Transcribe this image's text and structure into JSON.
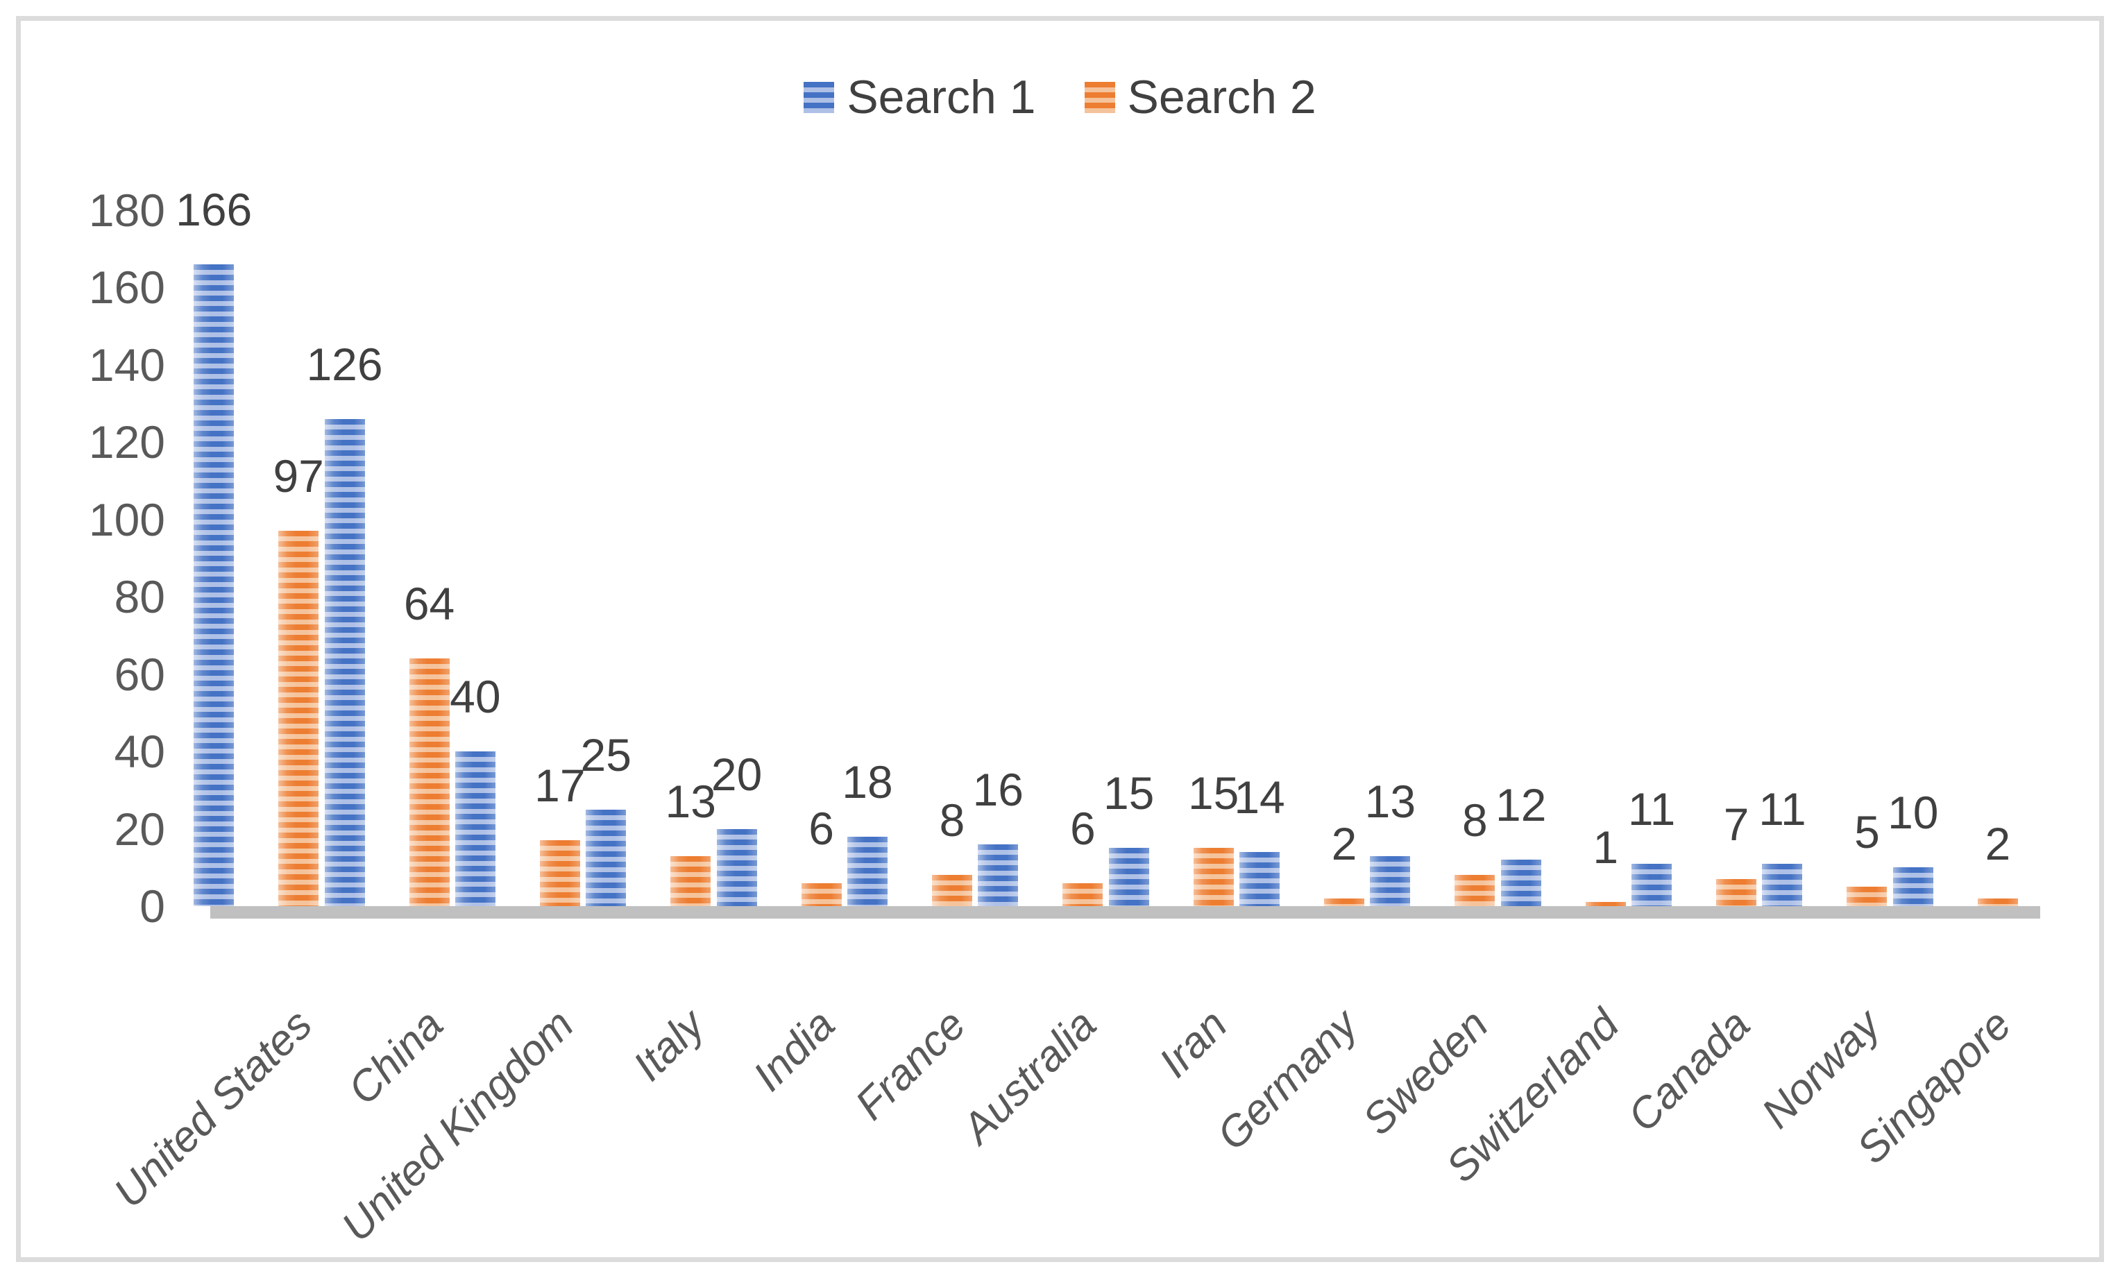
{
  "chart_data": {
    "type": "bar",
    "title": "",
    "xlabel": "",
    "ylabel": "",
    "categories": [
      "United States",
      "China",
      "United Kingdom",
      "Italy",
      "India",
      "France",
      "Australia",
      "Iran",
      "Germany",
      "Sweden",
      "Switzerland",
      "Canada",
      "Norway",
      "Singapore"
    ],
    "series": [
      {
        "name": "Search 1",
        "values": [
          166,
          126,
          40,
          25,
          20,
          18,
          16,
          15,
          14,
          13,
          12,
          11,
          11,
          10
        ]
      },
      {
        "name": "Search 2",
        "values": [
          97,
          64,
          17,
          13,
          6,
          8,
          6,
          15,
          2,
          8,
          1,
          7,
          5,
          2
        ]
      }
    ],
    "data_labels_shown": true,
    "ylim": [
      0,
      180
    ],
    "yticks": [
      0,
      20,
      40,
      60,
      80,
      100,
      120,
      140,
      160,
      180
    ],
    "gridlines": "off",
    "legend_position": "top-center",
    "bar_fill_style": "horizontal-stripes",
    "colors": {
      "series1_dark": "#4472C4",
      "series1_light": "#AEC0E6",
      "series2_dark": "#ED7D31",
      "series2_light": "#F5C39B",
      "axis_line": "#C0C0C0",
      "axis_text": "#595959",
      "label_text": "#404040"
    }
  }
}
